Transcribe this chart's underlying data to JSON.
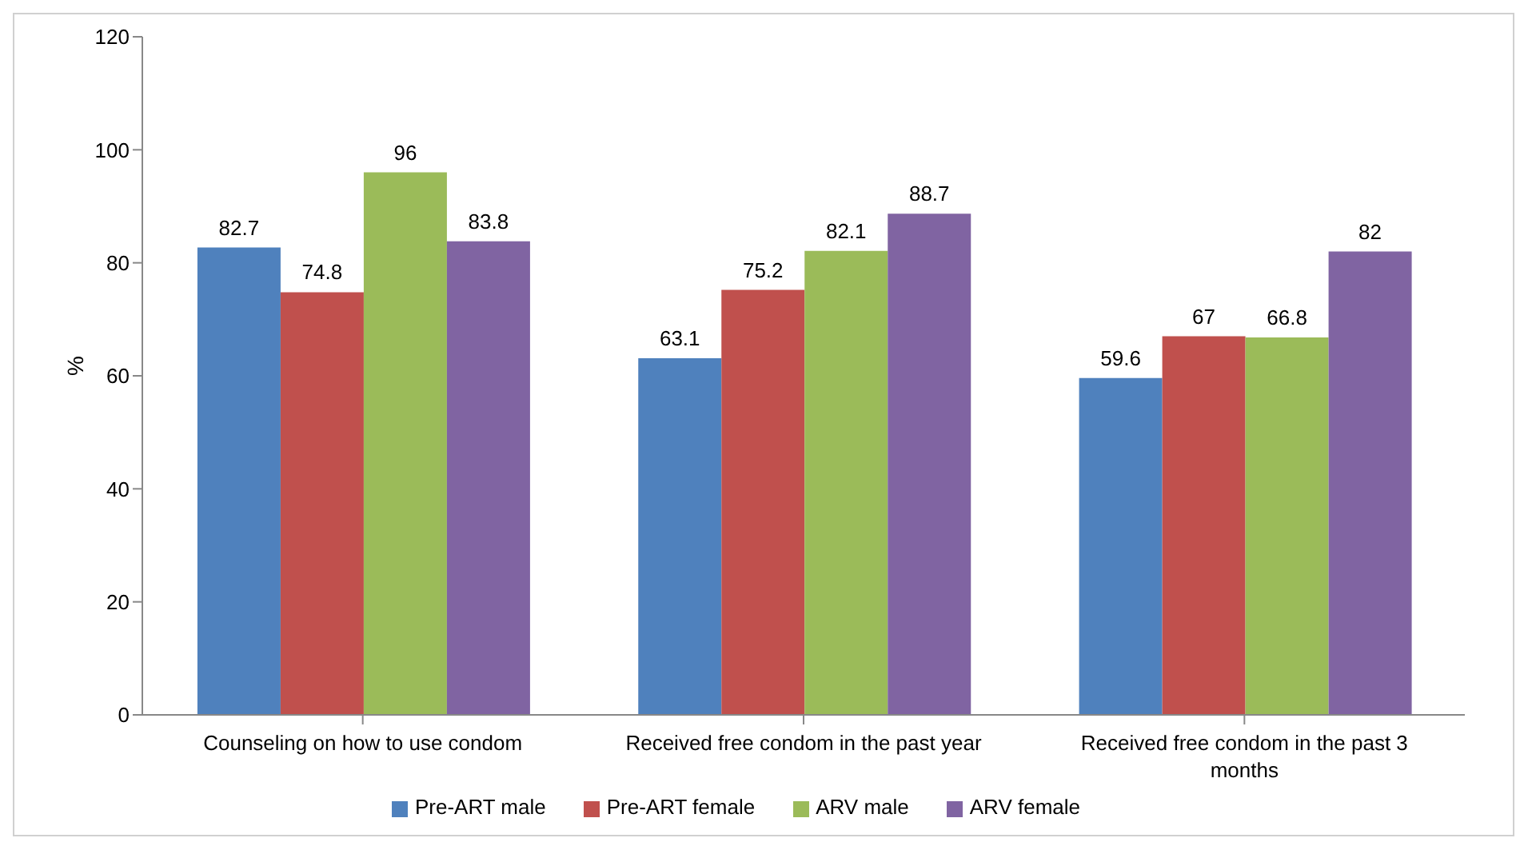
{
  "chart_data": {
    "type": "bar",
    "ylabel": "%",
    "categories": [
      "Counseling on how to use condom",
      "Received free condom in the past year",
      "Received free condom in the past 3 months"
    ],
    "series": [
      {
        "name": "Pre-ART male",
        "color": "#4f81bd",
        "values": [
          82.7,
          63.1,
          59.6
        ]
      },
      {
        "name": "Pre-ART female",
        "color": "#c0504d",
        "values": [
          74.8,
          75.2,
          67
        ]
      },
      {
        "name": "ARV male",
        "color": "#9bbb59",
        "values": [
          96,
          82.1,
          66.8
        ]
      },
      {
        "name": "ARV female",
        "color": "#8064a2",
        "values": [
          83.8,
          88.7,
          82
        ]
      }
    ],
    "ylim": [
      0,
      120
    ],
    "yticks": [
      0,
      20,
      40,
      60,
      80,
      100,
      120
    ],
    "grid": false,
    "legend": "bottom",
    "data_labels": true
  }
}
